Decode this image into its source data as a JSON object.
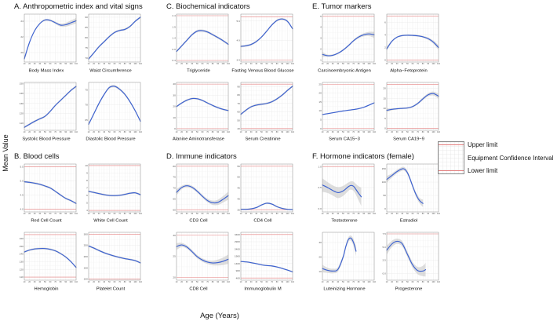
{
  "figure": {
    "y_axis_label": "Mean Value",
    "x_axis_label": "Age (Years)",
    "x_ticks": [
      10,
      20,
      30,
      40,
      50,
      60,
      70,
      80,
      90,
      100,
      110
    ],
    "legend": {
      "upper_label": "Upper limit",
      "ci_label": "Equipment Confidence Interval",
      "lower_label": "Lower limit"
    },
    "colors": {
      "curve": "#3B61D1",
      "band": "#c3c3c3",
      "limit": "#E57E7E",
      "grid": "#e6e6e6",
      "grid_minor": "#f2f2f2",
      "frame": "#909090",
      "tick": "#555555"
    }
  },
  "chart_data": [
    {
      "panel": "A",
      "title": "A. Anthropometric index and vital signs",
      "type": "line",
      "subplots": [
        {
          "name": "Body Mass Index",
          "ylim": [
            18.8,
            24.9
          ],
          "yticks": [
            "20",
            "22",
            "24"
          ],
          "upper": null,
          "lower": null,
          "band": [
            0.25,
            0.12,
            0.1,
            0.1,
            0.12,
            0.12,
            0.15,
            0.2,
            0.25,
            0.3,
            0.35
          ],
          "y": [
            19.2,
            21.3,
            22.8,
            23.7,
            24.15,
            24.1,
            23.8,
            23.5,
            23.55,
            23.8,
            24.05
          ]
        },
        {
          "name": "Waist Circumference",
          "ylim": [
            68,
            91.5
          ],
          "yticks": [
            "70",
            "75",
            "80",
            "85",
            "90"
          ],
          "upper": null,
          "lower": null,
          "band": 0.5,
          "y": [
            69.5,
            72.5,
            75.5,
            78,
            80.5,
            82.5,
            83.5,
            84,
            85.5,
            88,
            90
          ]
        },
        {
          "name": "Systolic Blood Pressure",
          "ylim": [
            103,
            151
          ],
          "yticks": [
            "110",
            "120",
            "130",
            "140",
            "150"
          ],
          "upper": null,
          "lower": null,
          "band": 1,
          "y": [
            106,
            109,
            112,
            114.5,
            117,
            122,
            128,
            133,
            138,
            143,
            147
          ]
        },
        {
          "name": "Diastolic Blood Pressure",
          "ylim": [
            61.5,
            77.5
          ],
          "yticks": [
            "65",
            "70",
            "75"
          ],
          "upper": null,
          "lower": null,
          "band": 0.4,
          "y": [
            63.5,
            67,
            70.5,
            73.5,
            75.8,
            76.2,
            75.2,
            73.5,
            71,
            68,
            64.5
          ]
        }
      ]
    },
    {
      "panel": "B",
      "title": "B. Blood cells",
      "type": "line",
      "subplots": [
        {
          "name": "Red Cell Count",
          "ylim": [
            3.9,
            5.6
          ],
          "yticks": [
            "4.0",
            "4.5",
            "5.0",
            "5.5"
          ],
          "upper": 5.5,
          "lower": 4.0,
          "band": 0.035,
          "y": [
            4.97,
            4.95,
            4.92,
            4.88,
            4.82,
            4.75,
            4.63,
            4.5,
            4.38,
            4.3,
            4.2
          ]
        },
        {
          "name": "White Cell Count",
          "ylim": [
            3.8,
            10.2
          ],
          "yticks": [
            "4",
            "5",
            "6",
            "7",
            "8",
            "9",
            "10"
          ],
          "upper": 10,
          "lower": 4,
          "band": 0.12,
          "y": [
            6.55,
            6.4,
            6.25,
            6.1,
            6.0,
            5.98,
            6.02,
            6.15,
            6.3,
            6.35,
            6.1
          ]
        },
        {
          "name": "Hemoglobin",
          "ylim": [
            106,
            168
          ],
          "yticks": [
            "110",
            "120",
            "130",
            "140",
            "150",
            "160"
          ],
          "upper": 165,
          "lower": 110,
          "band": 1.2,
          "y": [
            142.5,
            145,
            146.5,
            147,
            147,
            146,
            144,
            140.5,
            136,
            130,
            122.5
          ]
        },
        {
          "name": "Platelet Count",
          "ylim": [
            95,
            308
          ],
          "yticks": [
            "100",
            "150",
            "200",
            "250",
            "300"
          ],
          "upper": 300,
          "lower": 100,
          "band": 4,
          "y": [
            247,
            238,
            227,
            217,
            209,
            202,
            196,
            191,
            187,
            182,
            172
          ]
        }
      ]
    },
    {
      "panel": "C",
      "title": "C. Biochemical indicators",
      "type": "line",
      "subplots": [
        {
          "name": "Triglyceride",
          "ylim": [
            0.33,
            2.47
          ],
          "yticks": [
            "0.4",
            "0.9",
            "1.4",
            "1.9",
            "2.4"
          ],
          "upper": 2.4,
          "lower": 0.4,
          "band": 0.05,
          "y": [
            0.8,
            1.05,
            1.3,
            1.55,
            1.71,
            1.73,
            1.67,
            1.55,
            1.42,
            1.28,
            1.12
          ]
        },
        {
          "name": "Fasting Venous Blood Glucose",
          "ylim": [
            3.8,
            6.25
          ],
          "yticks": [
            "3.9",
            "4.9",
            "5.9"
          ],
          "upper": 6.1,
          "lower": 3.9,
          "band": 0.05,
          "y": [
            4.6,
            4.63,
            4.7,
            4.85,
            5.08,
            5.38,
            5.7,
            5.93,
            6.0,
            5.88,
            5.5
          ]
        },
        {
          "name": "Alanine Aminotransferase",
          "ylim": [
            -1.5,
            41.5
          ],
          "yticks": [
            "0",
            "10",
            "20",
            "30",
            "40"
          ],
          "upper": 40,
          "lower": 0,
          "band": 0.8,
          "y": [
            19.8,
            23,
            25.5,
            27,
            26.8,
            25.3,
            23,
            20.8,
            18.8,
            17.3,
            16.2
          ]
        },
        {
          "name": "Serum Creatinine",
          "ylim": [
            38,
            95
          ],
          "yticks": [
            "40",
            "50",
            "60",
            "70",
            "80",
            "90"
          ],
          "upper": 93,
          "lower": 40,
          "band": 1.2,
          "y": [
            57,
            62,
            66,
            68,
            69,
            70,
            72,
            75.5,
            80,
            85.5,
            90.5
          ]
        }
      ]
    },
    {
      "panel": "D",
      "title": "D. Immune indicators",
      "type": "line",
      "subplots": [
        {
          "name": "CD3 Cell",
          "ylim": [
            59,
            81
          ],
          "yticks": [
            "60",
            "65",
            "70",
            "75",
            "80"
          ],
          "upper": 80,
          "lower": 60,
          "band": [
            1.4,
            0.8,
            0.7,
            0.7,
            0.7,
            0.7,
            0.8,
            1.0,
            1.2,
            1.5,
            1.8
          ],
          "y": [
            68,
            70.2,
            71,
            70.3,
            68.5,
            66.2,
            64.2,
            63.2,
            63.4,
            64.8,
            66.5
          ]
        },
        {
          "name": "CD4 Cell",
          "ylim": [
            34,
            56
          ],
          "yticks": [
            "35",
            "40",
            "45",
            "50",
            "55"
          ],
          "upper": 55,
          "lower": 35,
          "band": 0.35,
          "y": [
            35.2,
            35.2,
            35.4,
            36,
            37.2,
            38,
            37.6,
            36.4,
            35.6,
            35.2,
            35.1
          ]
        },
        {
          "name": "CD8 Cell",
          "ylim": [
            19.3,
            30.7
          ],
          "yticks": [
            "20",
            "25",
            "30"
          ],
          "upper": 30,
          "lower": 20,
          "band": [
            0.8,
            0.5,
            0.4,
            0.4,
            0.4,
            0.4,
            0.45,
            0.55,
            0.7,
            0.9,
            1.1
          ],
          "y": [
            27.3,
            27.7,
            27.2,
            26.1,
            24.9,
            24.1,
            23.6,
            23.4,
            23.5,
            23.8,
            24.3
          ]
        },
        {
          "name": "Immunoglobulin M",
          "ylim": [
            250,
            3550
          ],
          "yticks": [
            "400",
            "900",
            "1400",
            "1900",
            "2400",
            "2900",
            "3400"
          ],
          "upper": 3400,
          "lower": 400,
          "band": 45,
          "y": [
            1540,
            1510,
            1460,
            1390,
            1310,
            1260,
            1230,
            1160,
            1060,
            950,
            820
          ]
        }
      ]
    },
    {
      "panel": "E",
      "title": "E. Tumor markers",
      "type": "line",
      "subplots": [
        {
          "name": "Carcinoembryonic Antigen",
          "ylim": [
            0.8,
            5.2
          ],
          "yticks": [
            "1",
            "2",
            "3",
            "4",
            "5"
          ],
          "upper": 5,
          "lower": null,
          "band": [
            0.22,
            0.1,
            0.08,
            0.08,
            0.08,
            0.09,
            0.1,
            0.12,
            0.15,
            0.2,
            0.28
          ],
          "y": [
            1.5,
            1.38,
            1.42,
            1.6,
            1.9,
            2.3,
            2.75,
            3.1,
            3.3,
            3.38,
            3.3
          ]
        },
        {
          "name": "Alpha−Fetoprotein",
          "ylim": [
            -0.3,
            7.3
          ],
          "yticks": [
            "0",
            "2",
            "4",
            "6"
          ],
          "upper": 7,
          "lower": 0,
          "band": [
            0.3,
            0.15,
            0.12,
            0.12,
            0.12,
            0.12,
            0.13,
            0.15,
            0.2,
            0.27,
            0.38
          ],
          "y": [
            1.8,
            3.0,
            3.65,
            3.9,
            3.95,
            3.92,
            3.85,
            3.7,
            3.4,
            2.85,
            2.0
          ]
        },
        {
          "name": "Serum CA15−3",
          "ylim": [
            -1,
            26
          ],
          "yticks": [
            "0",
            "5",
            "10",
            "15",
            "20",
            "25"
          ],
          "upper": 25,
          "lower": 0,
          "band": 0.3,
          "y": [
            7.9,
            8.4,
            8.9,
            9.4,
            9.9,
            10.3,
            10.7,
            11.2,
            12,
            13.2,
            14.5
          ]
        },
        {
          "name": "Serum CA19−9",
          "ylim": [
            -1,
            23
          ],
          "yticks": [
            "0",
            "5",
            "10",
            "15",
            "20"
          ],
          "upper": 22,
          "lower": 0,
          "band": [
            0.9,
            0.5,
            0.4,
            0.4,
            0.4,
            0.45,
            0.55,
            0.7,
            0.8,
            1.0,
            1.3
          ],
          "y": [
            9,
            9.5,
            9.8,
            10,
            10.2,
            10.9,
            12.5,
            14.8,
            16.8,
            17.4,
            16.1
          ]
        }
      ]
    },
    {
      "panel": "F",
      "title": "F. Hormone indicators (female)",
      "type": "line",
      "subplots": [
        {
          "name": "Testosterone",
          "ylim": [
            -0.08,
            1.06
          ],
          "yticks": [
            "0.0",
            "0.5",
            "1.0"
          ],
          "upper": 1.0,
          "lower": null,
          "x": [
            10,
            20,
            30,
            40,
            50,
            60,
            65,
            70,
            75,
            80,
            85
          ],
          "band": [
            0.16,
            0.13,
            0.12,
            0.13,
            0.12,
            0.1,
            0.1,
            0.11,
            0.13,
            0.17,
            0.22
          ],
          "y": [
            0.56,
            0.5,
            0.43,
            0.38,
            0.42,
            0.52,
            0.55,
            0.53,
            0.45,
            0.36,
            0.28
          ]
        },
        {
          "name": "Estradiol",
          "ylim": [
            -12,
            168
          ],
          "yticks": [
            "0",
            "50",
            "100",
            "150"
          ],
          "upper": null,
          "lower": null,
          "x": [
            10,
            20,
            30,
            40,
            45,
            50,
            55,
            60,
            65,
            70,
            75,
            80
          ],
          "band": [
            12,
            8,
            7,
            7,
            7,
            7,
            7,
            7,
            8,
            9,
            11,
            14
          ],
          "y": [
            110,
            125,
            140,
            150,
            148,
            135,
            112,
            85,
            60,
            40,
            27,
            20
          ]
        },
        {
          "name": "Luteinizing Hormone",
          "ylim": [
            4,
            37
          ],
          "yticks": [
            "10",
            "20",
            "30"
          ],
          "upper": null,
          "lower": null,
          "x": [
            10,
            20,
            30,
            40,
            50,
            55,
            60,
            65,
            70,
            75
          ],
          "band": [
            2.6,
            1.8,
            1.6,
            1.5,
            1.5,
            1.5,
            1.5,
            1.8,
            2.4,
            3.4
          ],
          "y": [
            12,
            10.8,
            10.3,
            11.5,
            20,
            27,
            32,
            33,
            30,
            24
          ]
        },
        {
          "name": "Progesterone",
          "ylim": [
            -1.3,
            7.8
          ],
          "yticks": [
            "0.0",
            "2.5",
            "5.0",
            "7.5"
          ],
          "upper": 7.5,
          "lower": null,
          "x": [
            10,
            20,
            30,
            40,
            50,
            60,
            70,
            80,
            85
          ],
          "band": [
            0.85,
            0.6,
            0.5,
            0.5,
            0.5,
            0.55,
            0.7,
            1.0,
            1.3
          ],
          "y": [
            4.4,
            5.6,
            6.1,
            5.6,
            3.6,
            1.6,
            0.5,
            0.45,
            0.7
          ]
        }
      ]
    }
  ]
}
